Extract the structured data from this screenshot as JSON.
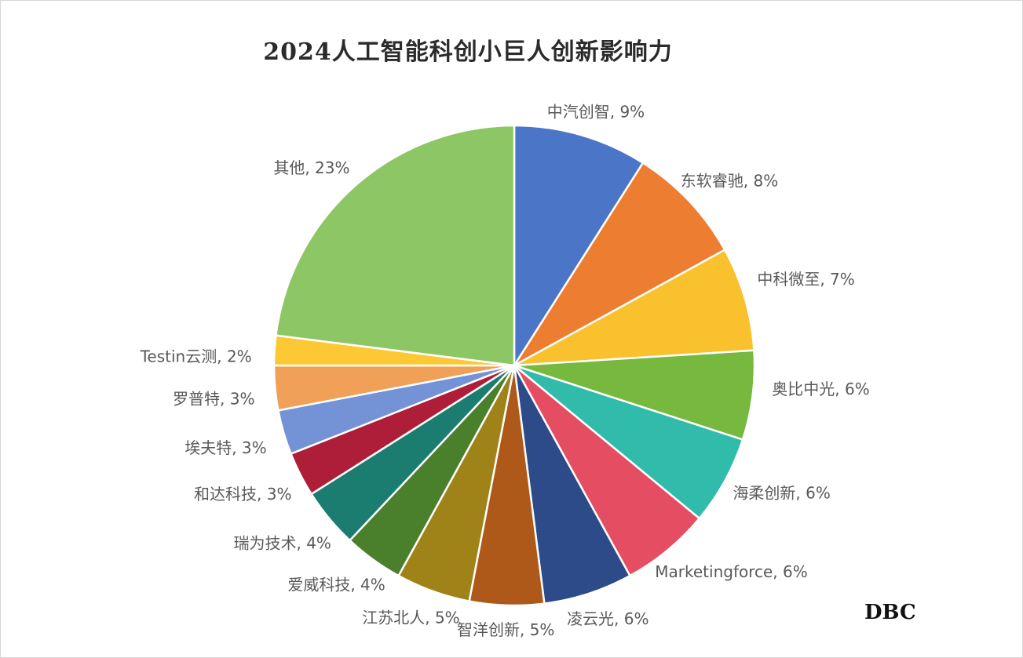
{
  "page": {
    "background": "#ffffff",
    "border_color": "#d6d6d6"
  },
  "header": {
    "title": "2024人工智能科创小巨人创新影响力",
    "title_color": "#2b2b2b"
  },
  "footer": {
    "brand": "DBC",
    "brand_color": "#111111"
  },
  "chart_data": {
    "type": "pie",
    "title": "2024人工智能科创小巨人创新影响力",
    "start_angle_deg": 0,
    "direction": "clockwise",
    "label_format": "{name}, {value}%",
    "label_color": "#595959",
    "slice_border_color": "#ffffff",
    "legend": "none",
    "slices": [
      {
        "name": "中汽创智",
        "value": 9,
        "color": "#4B76C8"
      },
      {
        "name": "东软睿驰",
        "value": 8,
        "color": "#ED7D31"
      },
      {
        "name": "中科微至",
        "value": 7,
        "color": "#FAC12E"
      },
      {
        "name": "奥比中光",
        "value": 6,
        "color": "#76B93E"
      },
      {
        "name": "海柔创新",
        "value": 6,
        "color": "#31BBAB"
      },
      {
        "name": "Marketingforce",
        "value": 6,
        "color": "#E54D63"
      },
      {
        "name": "凌云光",
        "value": 6,
        "color": "#2C4B88"
      },
      {
        "name": "智洋创新",
        "value": 5,
        "color": "#AE5819"
      },
      {
        "name": "江苏北人",
        "value": 5,
        "color": "#A08318"
      },
      {
        "name": "爱威科技",
        "value": 4,
        "color": "#4A7F2C"
      },
      {
        "name": "瑞为技术",
        "value": 4,
        "color": "#1A7D6F"
      },
      {
        "name": "和达科技",
        "value": 3,
        "color": "#AE1E38"
      },
      {
        "name": "埃夫特",
        "value": 3,
        "color": "#7492D6"
      },
      {
        "name": "罗普特",
        "value": 3,
        "color": "#F0A057"
      },
      {
        "name": "Testin云测",
        "value": 2,
        "color": "#FCC935"
      },
      {
        "name": "其他",
        "value": 23,
        "color": "#8CC665"
      }
    ]
  }
}
